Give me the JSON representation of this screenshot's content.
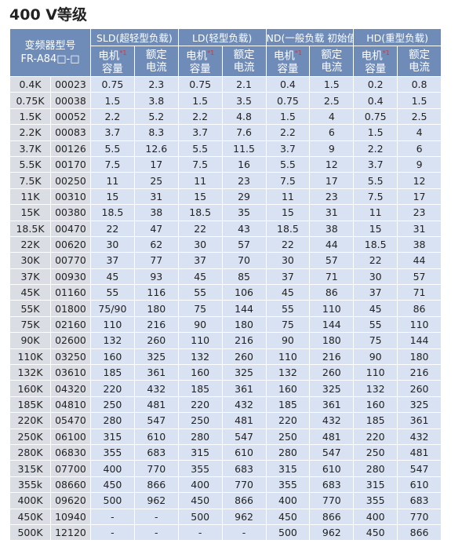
{
  "title": "400 V等级",
  "table": {
    "header": {
      "model": [
        "变频器型号",
        "FR-A84□-□"
      ],
      "groups": [
        "SLD(超轻型负载)",
        "LD(轻型负载)",
        "ND(一般负载 初始值)",
        "HD(重型负载)"
      ],
      "motor": [
        "电机",
        "容量"
      ],
      "note": "*1",
      "current": [
        "额定",
        "电流"
      ]
    },
    "rows": [
      [
        "0.4K",
        "00023",
        "0.75",
        "2.3",
        "0.75",
        "2.1",
        "0.4",
        "1.5",
        "0.2",
        "0.8"
      ],
      [
        "0.75K",
        "00038",
        "1.5",
        "3.8",
        "1.5",
        "3.5",
        "0.75",
        "2.5",
        "0.4",
        "1.5"
      ],
      [
        "1.5K",
        "00052",
        "2.2",
        "5.2",
        "2.2",
        "4.8",
        "1.5",
        "4",
        "0.75",
        "2.5"
      ],
      [
        "2.2K",
        "00083",
        "3.7",
        "8.3",
        "3.7",
        "7.6",
        "2.2",
        "6",
        "1.5",
        "4"
      ],
      [
        "3.7K",
        "00126",
        "5.5",
        "12.6",
        "5.5",
        "11.5",
        "3.7",
        "9",
        "2.2",
        "6"
      ],
      [
        "5.5K",
        "00170",
        "7.5",
        "17",
        "7.5",
        "16",
        "5.5",
        "12",
        "3.7",
        "9"
      ],
      [
        "7.5K",
        "00250",
        "11",
        "25",
        "11",
        "23",
        "7.5",
        "17",
        "5.5",
        "12"
      ],
      [
        "11K",
        "00310",
        "15",
        "31",
        "15",
        "29",
        "11",
        "23",
        "7.5",
        "17"
      ],
      [
        "15K",
        "00380",
        "18.5",
        "38",
        "18.5",
        "35",
        "15",
        "31",
        "11",
        "23"
      ],
      [
        "18.5K",
        "00470",
        "22",
        "47",
        "22",
        "43",
        "18.5",
        "38",
        "15",
        "31"
      ],
      [
        "22K",
        "00620",
        "30",
        "62",
        "30",
        "57",
        "22",
        "44",
        "18.5",
        "38"
      ],
      [
        "30K",
        "00770",
        "37",
        "77",
        "37",
        "70",
        "30",
        "57",
        "22",
        "44"
      ],
      [
        "37K",
        "00930",
        "45",
        "93",
        "45",
        "85",
        "37",
        "71",
        "30",
        "57"
      ],
      [
        "45K",
        "01160",
        "55",
        "116",
        "55",
        "106",
        "45",
        "86",
        "37",
        "71"
      ],
      [
        "55K",
        "01800",
        "75/90",
        "180",
        "75",
        "144",
        "55",
        "110",
        "45",
        "86"
      ],
      [
        "75K",
        "02160",
        "110",
        "216",
        "90",
        "180",
        "75",
        "144",
        "55",
        "110"
      ],
      [
        "90K",
        "02600",
        "132",
        "260",
        "110",
        "216",
        "90",
        "180",
        "75",
        "144"
      ],
      [
        "110K",
        "03250",
        "160",
        "325",
        "132",
        "260",
        "110",
        "216",
        "90",
        "180"
      ],
      [
        "132K",
        "03610",
        "185",
        "361",
        "160",
        "325",
        "132",
        "260",
        "110",
        "216"
      ],
      [
        "160K",
        "04320",
        "220",
        "432",
        "185",
        "361",
        "160",
        "325",
        "132",
        "260"
      ],
      [
        "185K",
        "04810",
        "250",
        "481",
        "220",
        "432",
        "185",
        "361",
        "160",
        "325"
      ],
      [
        "220K",
        "05470",
        "280",
        "547",
        "250",
        "481",
        "220",
        "432",
        "185",
        "361"
      ],
      [
        "250K",
        "06100",
        "315",
        "610",
        "280",
        "547",
        "250",
        "481",
        "220",
        "432"
      ],
      [
        "280K",
        "06830",
        "355",
        "683",
        "315",
        "610",
        "280",
        "547",
        "250",
        "481"
      ],
      [
        "315K",
        "07700",
        "400",
        "770",
        "355",
        "683",
        "315",
        "610",
        "280",
        "547"
      ],
      [
        "355k",
        "08660",
        "450",
        "866",
        "400",
        "770",
        "355",
        "683",
        "315",
        "610"
      ],
      [
        "400K",
        "09620",
        "500",
        "962",
        "450",
        "866",
        "400",
        "770",
        "355",
        "683"
      ],
      [
        "450K",
        "10940",
        "-",
        "-",
        "500",
        "962",
        "450",
        "866",
        "400",
        "770"
      ],
      [
        "500K",
        "12120",
        "-",
        "-",
        "-",
        "-",
        "500",
        "962",
        "450",
        "866"
      ]
    ]
  }
}
